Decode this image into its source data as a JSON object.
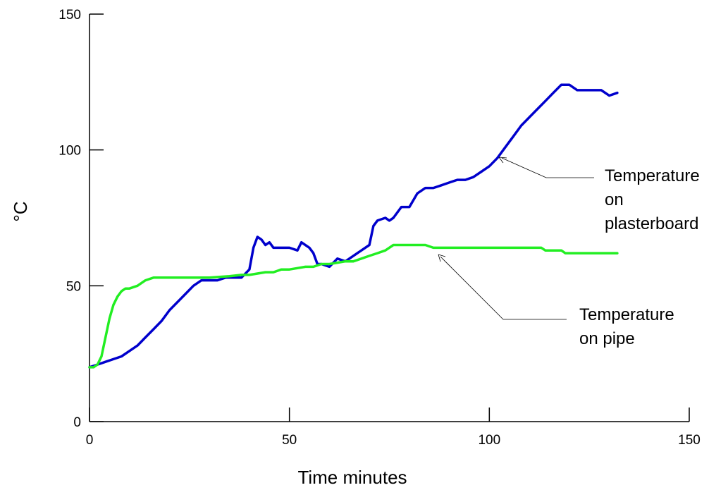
{
  "chart_data": {
    "type": "line",
    "title": "",
    "xlabel": "Time minutes",
    "ylabel": "°C",
    "xlim": [
      0,
      150
    ],
    "ylim": [
      0,
      150
    ],
    "xticks": [
      0,
      50,
      100,
      150
    ],
    "yticks": [
      0,
      50,
      100,
      150
    ],
    "grid": false,
    "legend": "none",
    "series": [
      {
        "name": "Temperature on plasterboard",
        "color": "#0000cc",
        "points": [
          [
            0,
            20
          ],
          [
            2,
            21
          ],
          [
            4,
            22
          ],
          [
            6,
            23
          ],
          [
            8,
            24
          ],
          [
            10,
            26
          ],
          [
            12,
            28
          ],
          [
            14,
            31
          ],
          [
            16,
            34
          ],
          [
            18,
            37
          ],
          [
            20,
            41
          ],
          [
            22,
            44
          ],
          [
            24,
            47
          ],
          [
            26,
            50
          ],
          [
            28,
            52
          ],
          [
            30,
            52
          ],
          [
            32,
            52
          ],
          [
            34,
            53
          ],
          [
            36,
            53
          ],
          [
            38,
            53
          ],
          [
            40,
            56
          ],
          [
            41,
            64
          ],
          [
            42,
            68
          ],
          [
            43,
            67
          ],
          [
            44,
            65
          ],
          [
            45,
            66
          ],
          [
            46,
            64
          ],
          [
            48,
            64
          ],
          [
            50,
            64
          ],
          [
            52,
            63
          ],
          [
            53,
            66
          ],
          [
            55,
            64
          ],
          [
            56,
            62
          ],
          [
            57,
            58
          ],
          [
            58,
            58
          ],
          [
            60,
            57
          ],
          [
            62,
            60
          ],
          [
            64,
            59
          ],
          [
            66,
            61
          ],
          [
            68,
            63
          ],
          [
            70,
            65
          ],
          [
            71,
            72
          ],
          [
            72,
            74
          ],
          [
            74,
            75
          ],
          [
            75,
            74
          ],
          [
            76,
            75
          ],
          [
            78,
            79
          ],
          [
            80,
            79
          ],
          [
            82,
            84
          ],
          [
            84,
            86
          ],
          [
            86,
            86
          ],
          [
            88,
            87
          ],
          [
            90,
            88
          ],
          [
            92,
            89
          ],
          [
            94,
            89
          ],
          [
            96,
            90
          ],
          [
            98,
            92
          ],
          [
            100,
            94
          ],
          [
            102,
            97
          ],
          [
            104,
            101
          ],
          [
            106,
            105
          ],
          [
            108,
            109
          ],
          [
            110,
            112
          ],
          [
            112,
            115
          ],
          [
            114,
            118
          ],
          [
            116,
            121
          ],
          [
            118,
            124
          ],
          [
            120,
            124
          ],
          [
            122,
            122
          ],
          [
            124,
            122
          ],
          [
            126,
            122
          ],
          [
            128,
            122
          ],
          [
            130,
            120
          ],
          [
            132,
            121
          ]
        ]
      },
      {
        "name": "Temperature on pipe",
        "color": "#22ee22",
        "points": [
          [
            0,
            20
          ],
          [
            1,
            20
          ],
          [
            2,
            21
          ],
          [
            3,
            24
          ],
          [
            4,
            31
          ],
          [
            5,
            38
          ],
          [
            6,
            43
          ],
          [
            7,
            46
          ],
          [
            8,
            48
          ],
          [
            9,
            49
          ],
          [
            10,
            49
          ],
          [
            12,
            50
          ],
          [
            14,
            52
          ],
          [
            16,
            53
          ],
          [
            18,
            53
          ],
          [
            20,
            53
          ],
          [
            25,
            53
          ],
          [
            30,
            53
          ],
          [
            35,
            53.5
          ],
          [
            38,
            54
          ],
          [
            40,
            54
          ],
          [
            42,
            54.5
          ],
          [
            44,
            55
          ],
          [
            46,
            55
          ],
          [
            48,
            56
          ],
          [
            50,
            56
          ],
          [
            52,
            56.5
          ],
          [
            54,
            57
          ],
          [
            56,
            57
          ],
          [
            58,
            58
          ],
          [
            60,
            58
          ],
          [
            62,
            58.5
          ],
          [
            64,
            59
          ],
          [
            66,
            59
          ],
          [
            68,
            60
          ],
          [
            70,
            61
          ],
          [
            72,
            62
          ],
          [
            74,
            63
          ],
          [
            76,
            65
          ],
          [
            78,
            65
          ],
          [
            80,
            65
          ],
          [
            84,
            65
          ],
          [
            86,
            64
          ],
          [
            90,
            64
          ],
          [
            95,
            64
          ],
          [
            100,
            64
          ],
          [
            105,
            64
          ],
          [
            110,
            64
          ],
          [
            113,
            64
          ],
          [
            114,
            63
          ],
          [
            118,
            63
          ],
          [
            119,
            62
          ],
          [
            122,
            62
          ],
          [
            126,
            62
          ],
          [
            132,
            62
          ]
        ]
      }
    ],
    "annotations": [
      {
        "text_lines": [
          "Temperature",
          "on",
          "plasterboard"
        ],
        "target": [
          102,
          97
        ]
      },
      {
        "text_lines": [
          "Temperature",
          "on pipe"
        ],
        "target": [
          87,
          61
        ]
      }
    ]
  }
}
